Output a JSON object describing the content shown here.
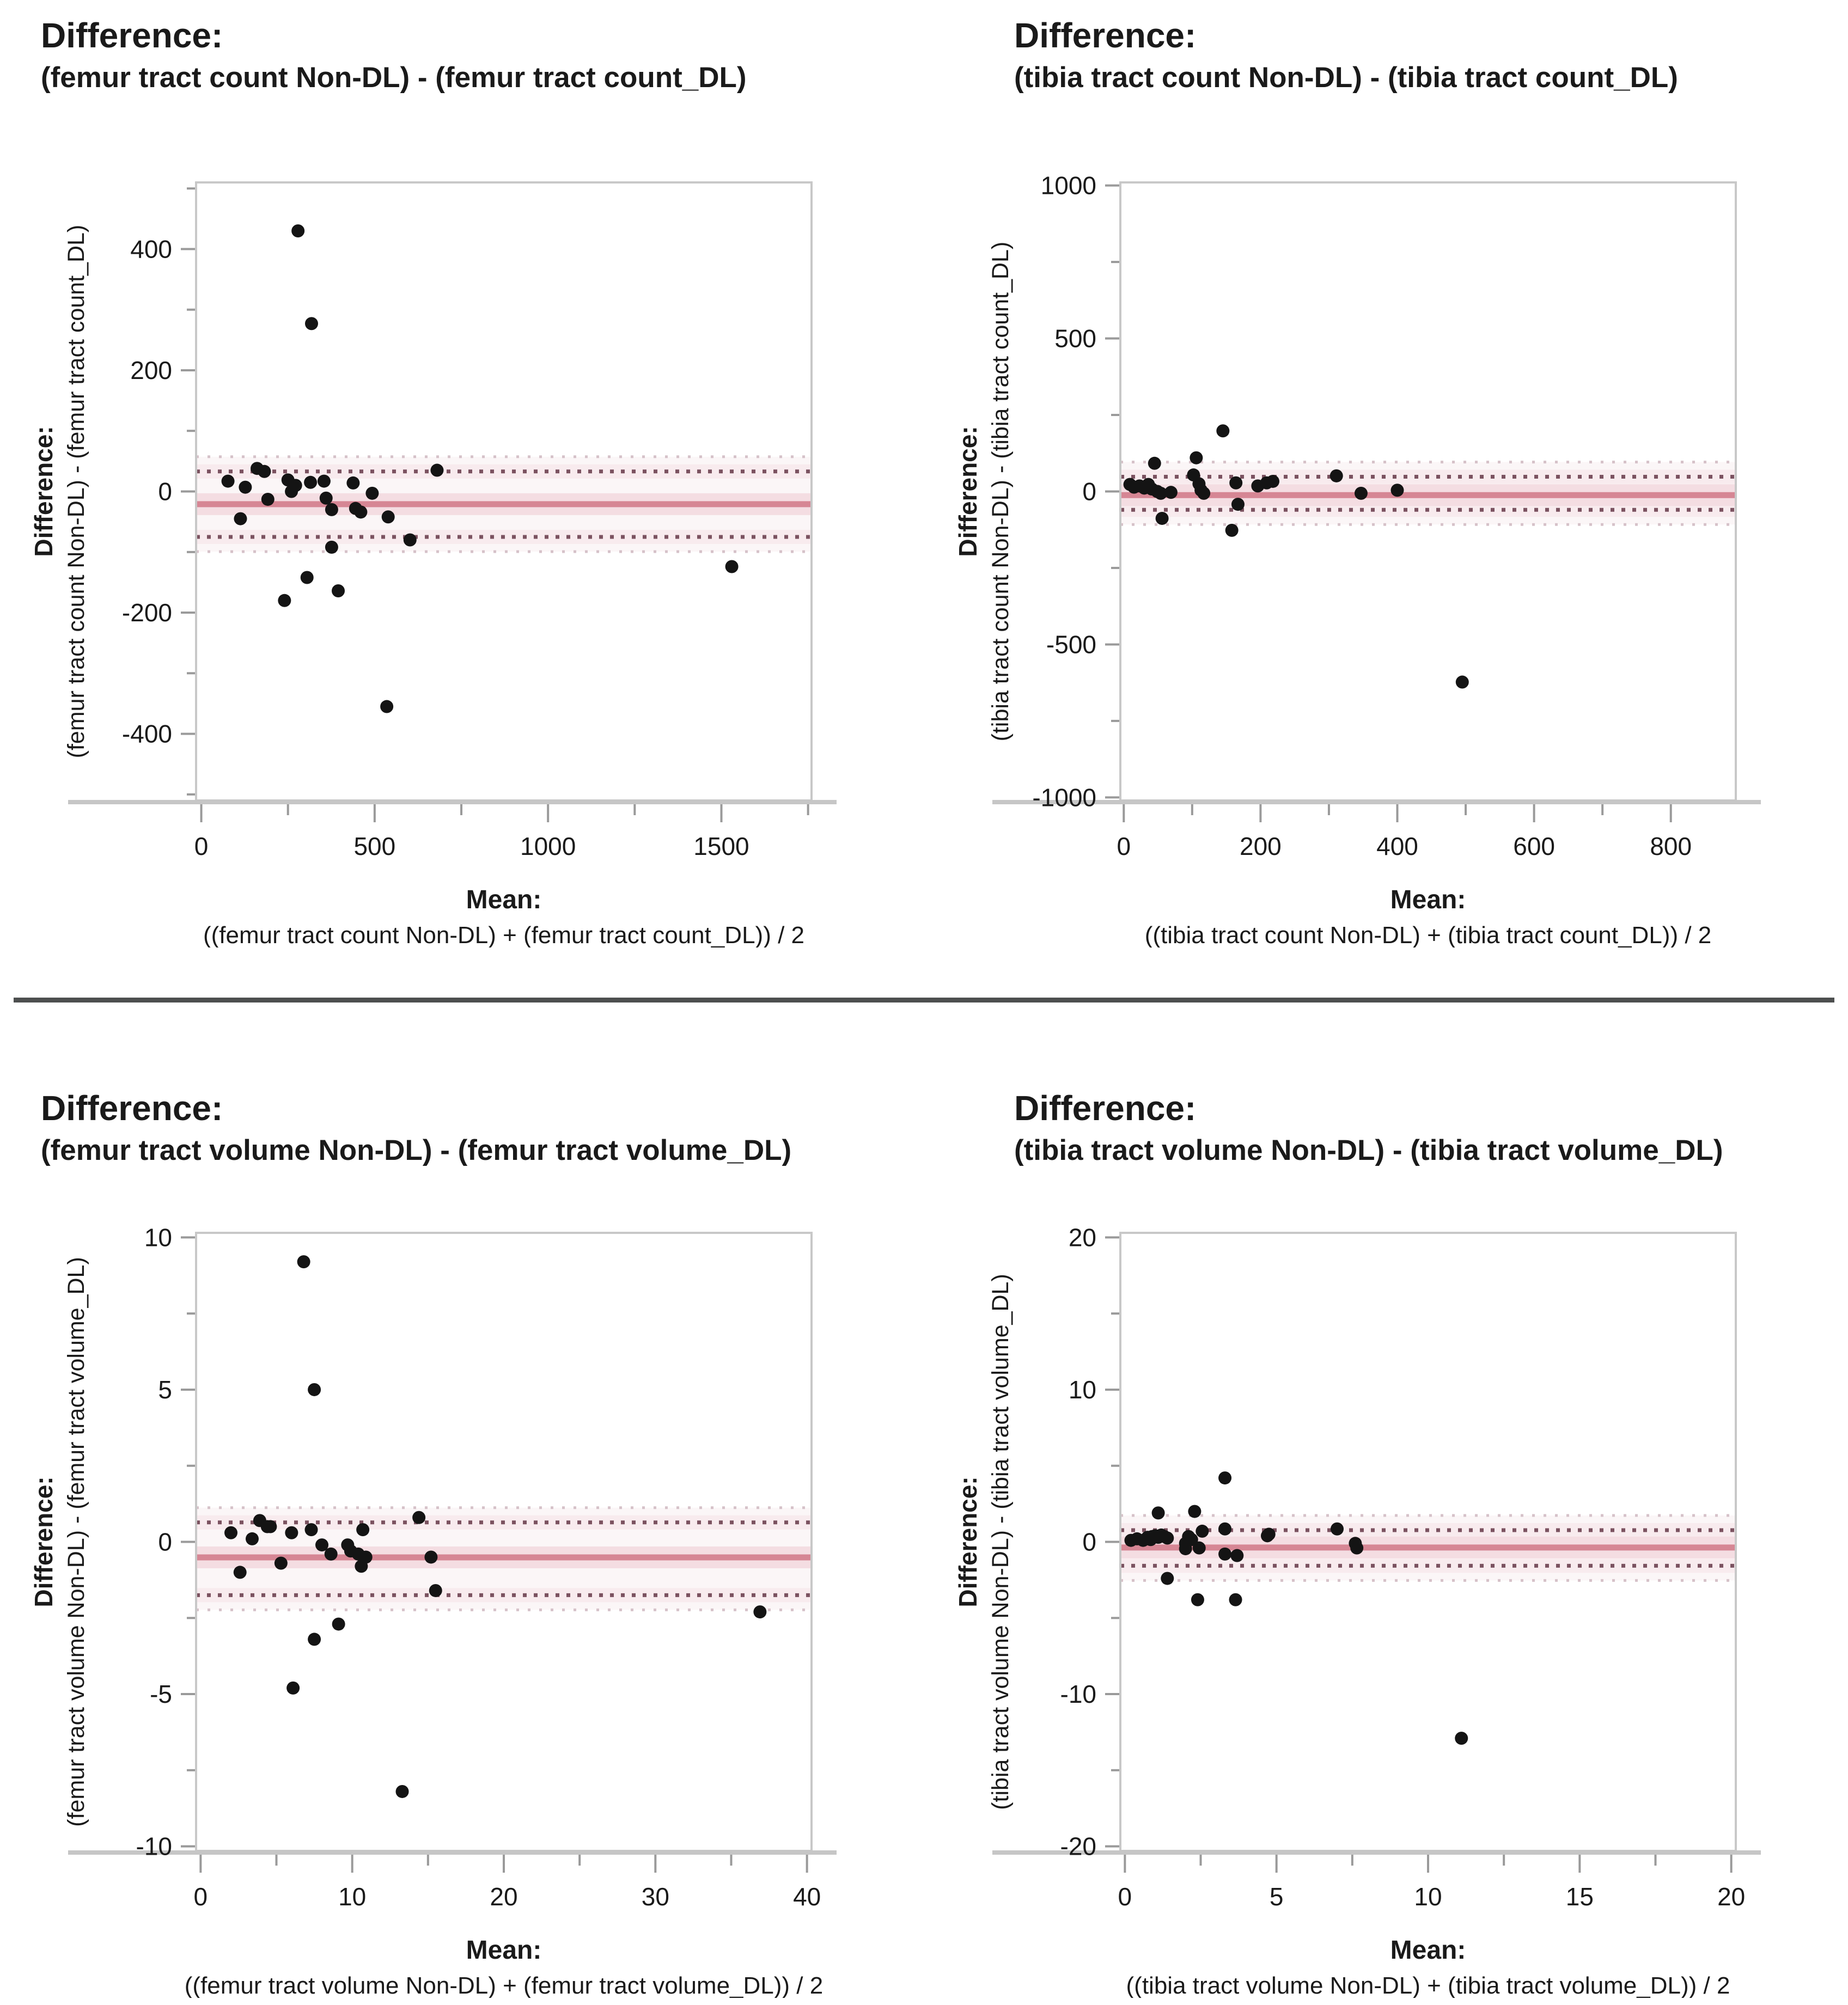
{
  "page": {
    "background": "#ffffff"
  },
  "colors": {
    "text": "#1a1a1a",
    "divider": "#4d4f4f",
    "point": "#141414",
    "mean_line": "#d68694",
    "mean_band": "#f4dde2",
    "loa_line": "#7b5260",
    "loa_band": "#f8ebee",
    "loa_faint": "#d6c2c9",
    "loa_zone": "#fbf6f7",
    "box_border": "#c8c8c8",
    "axis_bar": "#c6c6c6",
    "tick": "#9a9a9a"
  },
  "chart_data": [
    {
      "type": "scatter",
      "panel_title": "Difference:",
      "panel_subtitle": "(femur tract count Non-DL) - (femur tract count_DL)",
      "ylabel_line1": "Difference:",
      "ylabel_line2": "(femur tract count Non-DL) - (femur tract count_DL)",
      "xlabel_line1": "Mean:",
      "xlabel_line2": "((femur tract count Non-DL) + (femur tract count_DL)) / 2",
      "xlim": [
        -15,
        1760
      ],
      "ylim": [
        -510,
        510
      ],
      "xticks": [
        0,
        500,
        1000,
        1500
      ],
      "xminor": [
        250,
        750,
        1250,
        1750
      ],
      "yticks": [
        -400,
        -200,
        0,
        200,
        400
      ],
      "yminor": [
        -500,
        -300,
        -100,
        100,
        300,
        500
      ],
      "grid": false,
      "legend": "none",
      "mean": -21,
      "loa_upper": 33,
      "loa_lower": -75,
      "points": [
        [
          77,
          17
        ],
        [
          113,
          -45
        ],
        [
          127,
          7
        ],
        [
          161,
          38
        ],
        [
          182,
          33
        ],
        [
          192,
          -13
        ],
        [
          240,
          -180
        ],
        [
          250,
          19
        ],
        [
          260,
          0
        ],
        [
          272,
          10
        ],
        [
          279,
          430
        ],
        [
          305,
          -142
        ],
        [
          315,
          15
        ],
        [
          318,
          277
        ],
        [
          354,
          17
        ],
        [
          360,
          -11
        ],
        [
          376,
          -30
        ],
        [
          376,
          -92
        ],
        [
          395,
          -164
        ],
        [
          438,
          14
        ],
        [
          445,
          -28
        ],
        [
          460,
          -34
        ],
        [
          493,
          -3
        ],
        [
          535,
          -355
        ],
        [
          539,
          -42
        ],
        [
          602,
          -80
        ],
        [
          680,
          35
        ],
        [
          1530,
          -124
        ]
      ]
    },
    {
      "type": "scatter",
      "panel_title": "Difference:",
      "panel_subtitle": "(tibia tract count Non-DL) - (tibia tract count_DL)",
      "ylabel_line1": "Difference:",
      "ylabel_line2": "(tibia tract count Non-DL) - (tibia tract count_DL)",
      "xlabel_line1": "Mean:",
      "xlabel_line2": "((tibia tract count Non-DL) + (tibia tract count_DL)) / 2",
      "xlim": [
        -5,
        895
      ],
      "ylim": [
        -1010,
        1010
      ],
      "xticks": [
        0,
        200,
        400,
        600,
        800
      ],
      "xminor": [
        100,
        300,
        500,
        700,
        900
      ],
      "yticks": [
        -1000,
        -500,
        0,
        500,
        1000
      ],
      "yminor": [
        -750,
        -250,
        250,
        750
      ],
      "grid": false,
      "legend": "none",
      "mean": -12,
      "loa_upper": 48,
      "loa_lower": -60,
      "points": [
        [
          9,
          23
        ],
        [
          15,
          14
        ],
        [
          23,
          18
        ],
        [
          30,
          11
        ],
        [
          36,
          23
        ],
        [
          41,
          8
        ],
        [
          45,
          92
        ],
        [
          49,
          0
        ],
        [
          54,
          -6
        ],
        [
          56,
          -88
        ],
        [
          69,
          -3
        ],
        [
          102,
          54
        ],
        [
          106,
          110
        ],
        [
          110,
          25
        ],
        [
          113,
          4
        ],
        [
          117,
          -6
        ],
        [
          145,
          198
        ],
        [
          158,
          -127
        ],
        [
          164,
          28
        ],
        [
          167,
          -42
        ],
        [
          196,
          18
        ],
        [
          209,
          28
        ],
        [
          218,
          33
        ],
        [
          311,
          51
        ],
        [
          347,
          -6
        ],
        [
          400,
          4
        ],
        [
          495,
          -623
        ]
      ]
    },
    {
      "type": "scatter",
      "panel_title": "Difference:",
      "panel_subtitle": "(femur tract volume Non-DL) - (femur tract volume_DL)",
      "ylabel_line1": "Difference:",
      "ylabel_line2": "(femur tract volume Non-DL) - (femur tract volume_DL)",
      "xlabel_line1": "Mean:",
      "xlabel_line2": "((femur tract volume Non-DL) + (femur tract volume_DL)) / 2",
      "xlim": [
        -0.3,
        40.3
      ],
      "ylim": [
        -10.15,
        10.15
      ],
      "xticks": [
        0,
        10,
        20,
        30,
        40
      ],
      "xminor": [
        5,
        15,
        25,
        35
      ],
      "yticks": [
        -10,
        -5,
        0,
        5,
        10
      ],
      "yminor": [
        -7.5,
        -2.5,
        2.5,
        7.5
      ],
      "grid": false,
      "legend": "none",
      "mean": -0.51,
      "loa_upper": 0.64,
      "loa_lower": -1.75,
      "points": [
        [
          2.0,
          0.3
        ],
        [
          2.6,
          -1.0
        ],
        [
          3.4,
          0.1
        ],
        [
          3.9,
          0.7
        ],
        [
          4.4,
          0.5
        ],
        [
          4.6,
          0.5
        ],
        [
          5.3,
          -0.7
        ],
        [
          6.0,
          0.3
        ],
        [
          6.1,
          -4.8
        ],
        [
          6.8,
          9.2
        ],
        [
          7.3,
          0.4
        ],
        [
          7.5,
          5.0
        ],
        [
          7.5,
          -3.2
        ],
        [
          8.0,
          -0.1
        ],
        [
          8.6,
          -0.4
        ],
        [
          9.1,
          -2.7
        ],
        [
          9.7,
          -0.1
        ],
        [
          9.9,
          -0.3
        ],
        [
          10.4,
          -0.4
        ],
        [
          10.6,
          -0.8
        ],
        [
          10.7,
          0.4
        ],
        [
          10.9,
          -0.5
        ],
        [
          13.3,
          -8.2
        ],
        [
          14.4,
          0.8
        ],
        [
          15.2,
          -0.5
        ],
        [
          15.5,
          -1.6
        ],
        [
          36.9,
          -2.3
        ]
      ]
    },
    {
      "type": "scatter",
      "panel_title": "Difference:",
      "panel_subtitle": "(tibia tract volume Non-DL) - (tibia tract volume_DL)",
      "ylabel_line1": "Difference:",
      "ylabel_line2": "(tibia tract volume Non-DL) - (tibia tract volume_DL)",
      "xlabel_line1": "Mean:",
      "xlabel_line2": "((tibia tract volume Non-DL) + (tibia tract volume_DL)) / 2",
      "xlim": [
        -0.15,
        20.15
      ],
      "ylim": [
        -20.3,
        20.3
      ],
      "xticks": [
        0,
        5,
        10,
        15,
        20
      ],
      "xminor": [
        2.5,
        7.5,
        12.5,
        17.5
      ],
      "yticks": [
        -20,
        -10,
        0,
        10,
        20
      ],
      "yminor": [
        -15,
        -5,
        5,
        15
      ],
      "grid": false,
      "legend": "none",
      "mean": -0.37,
      "loa_upper": 0.77,
      "loa_lower": -1.57,
      "points": [
        [
          0.2,
          0.1
        ],
        [
          0.4,
          0.2
        ],
        [
          0.6,
          0.1
        ],
        [
          0.75,
          0.3
        ],
        [
          0.85,
          0.15
        ],
        [
          0.9,
          0.35
        ],
        [
          1.0,
          0.4
        ],
        [
          1.1,
          0.3
        ],
        [
          1.1,
          1.9
        ],
        [
          1.2,
          0.45
        ],
        [
          1.3,
          0.35
        ],
        [
          1.4,
          0.25
        ],
        [
          1.4,
          -2.4
        ],
        [
          2.0,
          -0.45
        ],
        [
          2.0,
          -0.1
        ],
        [
          2.1,
          0.35
        ],
        [
          2.2,
          0.15
        ],
        [
          2.3,
          2.0
        ],
        [
          2.4,
          -3.8
        ],
        [
          2.45,
          -0.4
        ],
        [
          2.55,
          0.7
        ],
        [
          3.3,
          4.2
        ],
        [
          3.3,
          0.85
        ],
        [
          3.3,
          -0.8
        ],
        [
          3.65,
          -3.8
        ],
        [
          3.7,
          -0.9
        ],
        [
          4.7,
          0.4
        ],
        [
          4.75,
          0.5
        ],
        [
          7.0,
          0.85
        ],
        [
          7.6,
          -0.1
        ],
        [
          7.65,
          -0.4
        ],
        [
          11.1,
          -12.9
        ]
      ]
    }
  ]
}
